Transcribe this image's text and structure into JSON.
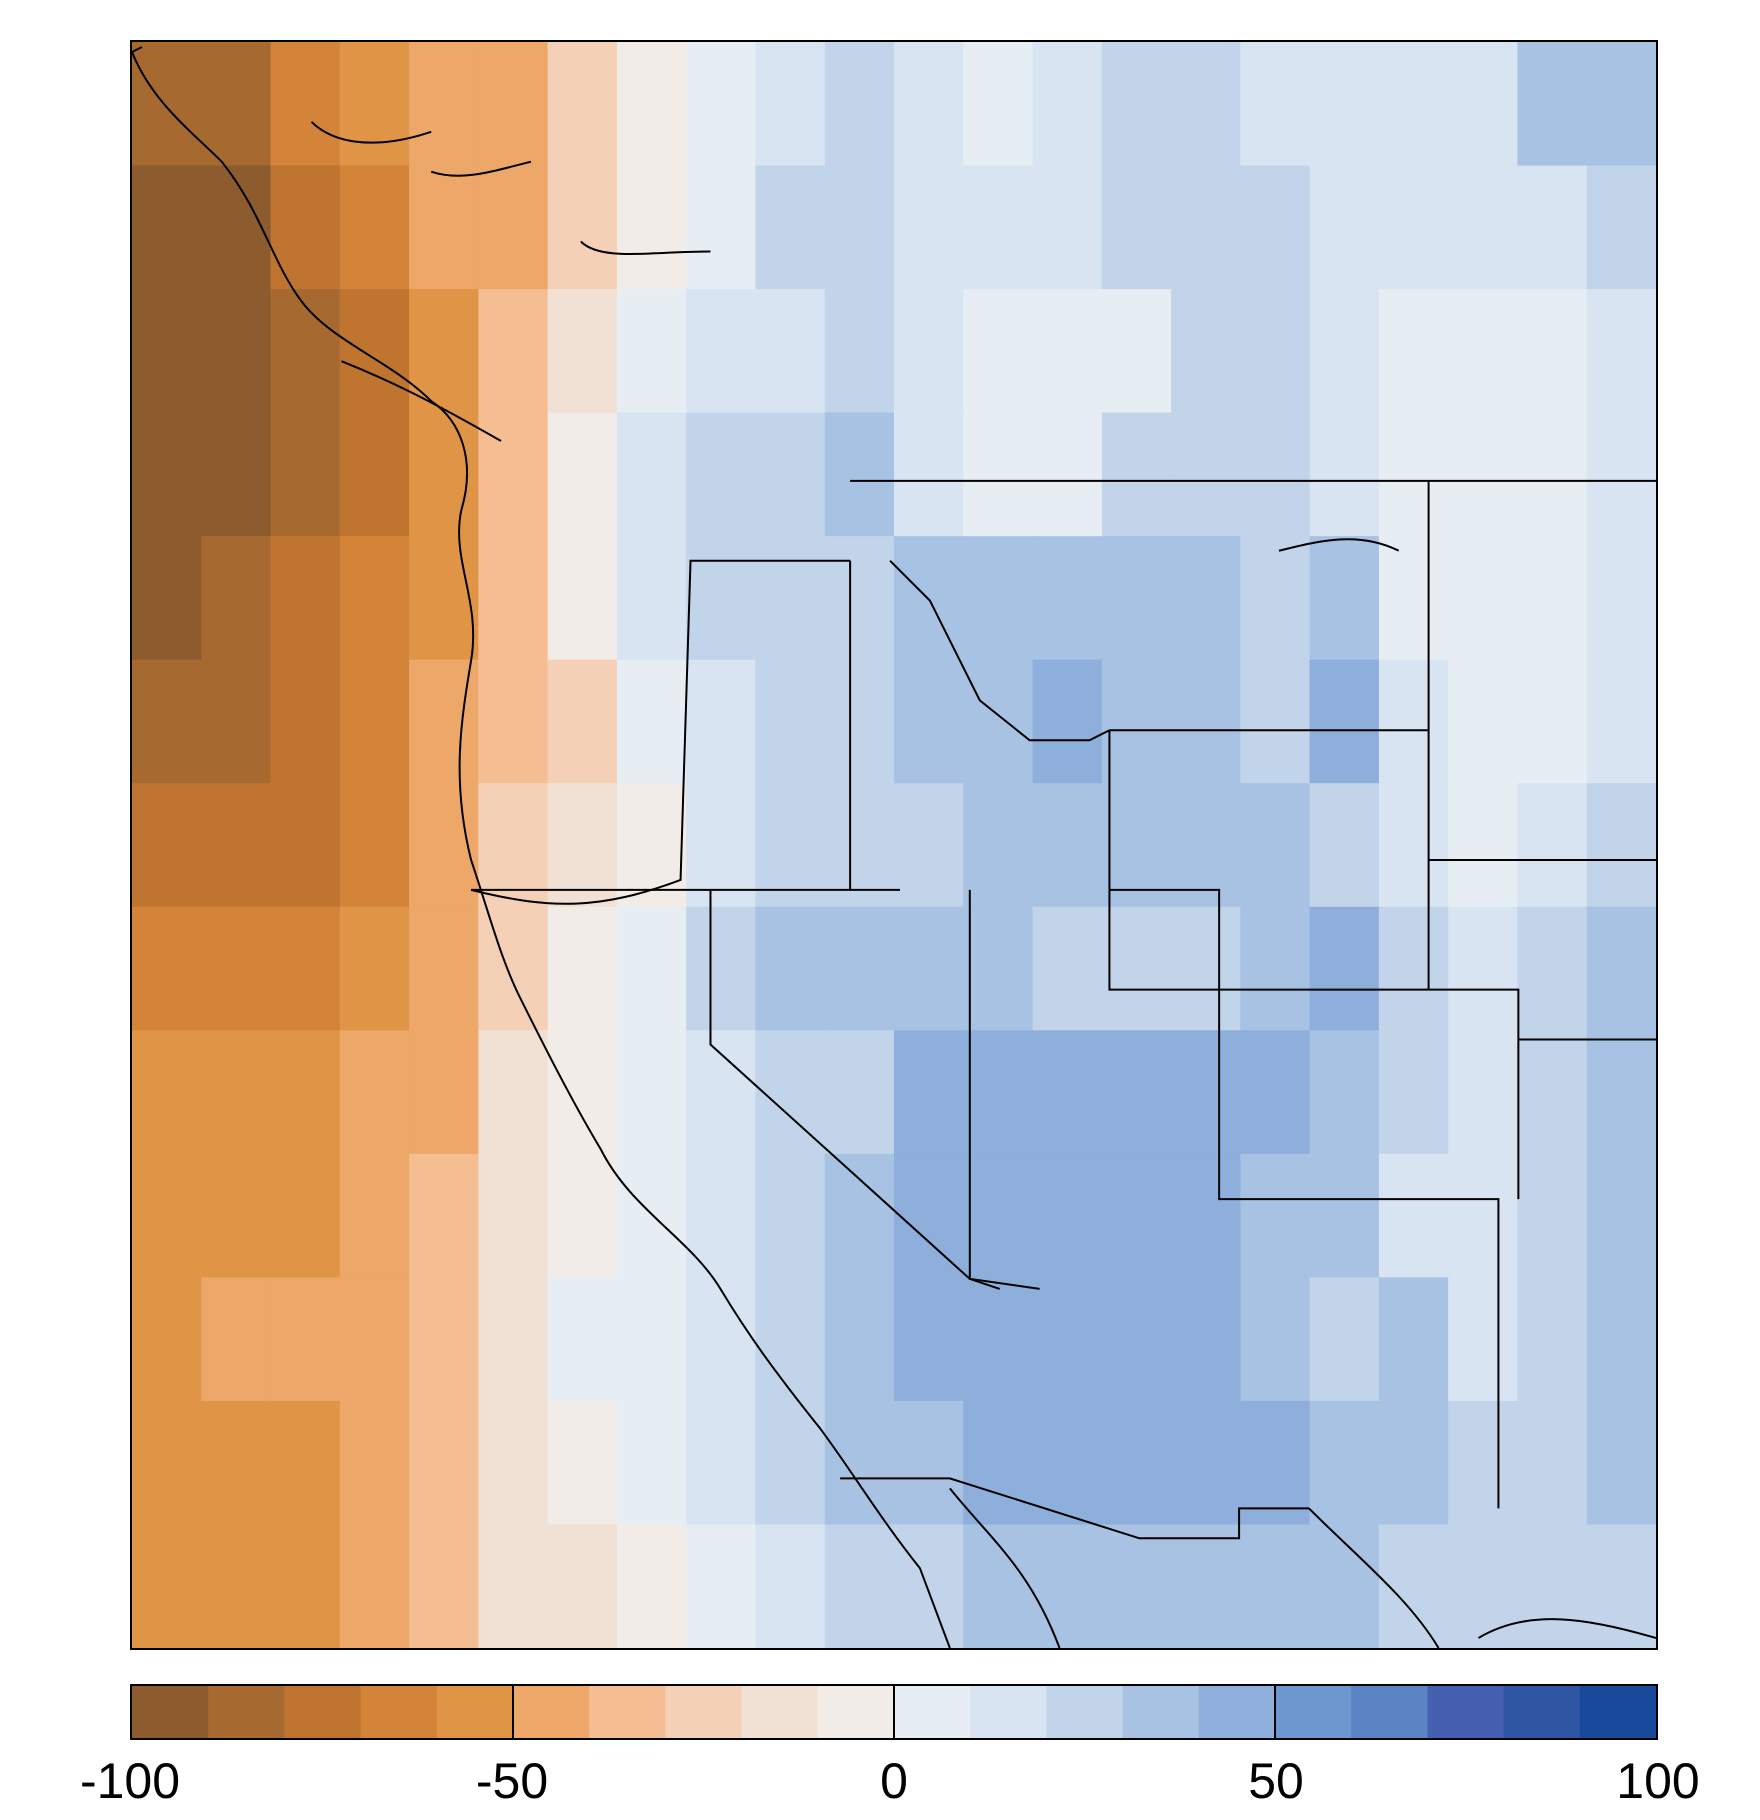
{
  "map": {
    "palette": [
      "#8c5c2e",
      "#a66a30",
      "#bf7430",
      "#d48438",
      "#e09446",
      "#eda768",
      "#f4bd92",
      "#f3d0b6",
      "#f1e1d4",
      "#f1ece8",
      "#e7eef3",
      "#d8e4f1",
      "#c1d4ea",
      "#a7c2e2",
      "#8eaedb",
      "#6d97cf",
      "#5a84c3",
      "#4560b0",
      "#2f56a3",
      "#184a9b"
    ],
    "grid_rows": [
      "BBDEFFHJKLMLKLMMLLLLNN",
      "AACDFFHJKMMLLLMMMLLLLM",
      "AABCEGIKLLMLKKKMMLKKKL",
      "AABCEGJLMMNLKKMMMLKKKL",
      "ABCDEGJLMMMNNNNNMNKKKL",
      "BBCDFGHKLMMNNONNMOLKKL",
      "CCCDFHIJLMMMNNNNNMLKLM",
      "DDDEFHJKMNNNNMMMNOMLMN",
      "EEEFFIJKLMMOOOOOONMLMN",
      "EEEFGIJKLMNOOOOONNLLMN",
      "EFFFGIKKLMNOOOOONMNLMN",
      "EEEFGIJKLMNNOOOOONNMMN",
      "EEEFGIIJKLMMNNNNNNMMMM"
    ],
    "legend": {
      "ticks": [
        "-100",
        "-50",
        "0",
        "50",
        "100"
      ],
      "min": -100,
      "max": 100,
      "steps": 20
    }
  }
}
